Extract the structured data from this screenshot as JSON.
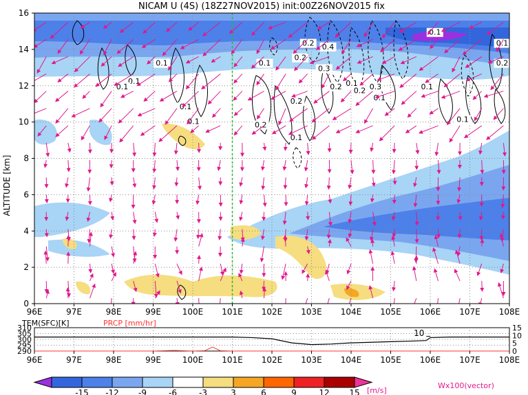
{
  "title": "NICAM U (4S) (18Z27NOV2015) init:00Z26NOV2015 fix",
  "chart_data": [
    {
      "type": "heatmap",
      "title": "NICAM U (4S) (18Z27NOV2015) init:00Z26NOV2015 fix",
      "xlabel": "",
      "ylabel": "ALTITUDE [km]",
      "x_ticks": [
        "96E",
        "97E",
        "98E",
        "99E",
        "100E",
        "101E",
        "102E",
        "103E",
        "104E",
        "105E",
        "106E",
        "107E",
        "108E"
      ],
      "y_ticks": [
        "0",
        "2",
        "4",
        "6",
        "8",
        "10",
        "12",
        "14",
        "16"
      ],
      "xlim": [
        96,
        108
      ],
      "ylim": [
        0,
        16
      ],
      "grid": true,
      "marker_line_lon": 101.0,
      "contour_labels": [
        "0.1",
        "0.1",
        "0.1",
        "0.1",
        "0.1",
        "0.1",
        "0.2",
        "0.1",
        "0.2",
        "0.4",
        "0.2",
        "0.3",
        "0.1",
        "0.2",
        "0.3",
        "0.2",
        "0.1",
        "0.2",
        "0.1",
        "0.1",
        "0.1",
        "0.1",
        "0.2"
      ],
      "vector_label": "Wx100(vector)"
    },
    {
      "type": "line",
      "series": [
        {
          "name": "TEM(SFC)[K]",
          "color": "#000000",
          "x": [
            96,
            97,
            98,
            99,
            100,
            100.5,
            101,
            101.5,
            102,
            102.5,
            103,
            103.5,
            104,
            104.5,
            105,
            105.5,
            105.9,
            106,
            106.5,
            107,
            108
          ],
          "values": [
            302,
            302,
            302,
            302,
            302,
            302,
            302,
            301.5,
            300.5,
            297,
            295.5,
            296,
            297,
            297.5,
            298,
            298.5,
            299,
            301.5,
            302,
            302,
            302
          ]
        },
        {
          "name": "PRCP [mm/hr]",
          "color": "#ff3333",
          "x": [
            96,
            99,
            99.5,
            100,
            100.3,
            100.5,
            100.7,
            101,
            102,
            103,
            104,
            105,
            106,
            107,
            108
          ],
          "values": [
            0,
            0,
            0.4,
            0,
            0.2,
            2.5,
            0.2,
            0,
            0,
            0,
            0,
            0,
            0,
            0,
            0
          ]
        }
      ],
      "left_ticks": [
        "310",
        "305",
        "300",
        "295",
        "290"
      ],
      "right_ticks": [
        "15",
        "10",
        "5",
        "0"
      ],
      "x_ticks": [
        "96E",
        "97E",
        "98E",
        "99E",
        "100E",
        "101E",
        "102E",
        "103E",
        "104E",
        "105E",
        "106E",
        "107E",
        "108E"
      ],
      "annotation": "10"
    }
  ],
  "colorbar": {
    "ticks": [
      "-15",
      "-12",
      "-9",
      "-6",
      "-3",
      "3",
      "6",
      "9",
      "12",
      "15"
    ],
    "unit": "[m/s]",
    "colors": [
      "#9b30e0",
      "#3366dd",
      "#4d80e8",
      "#7aa6f0",
      "#a8d4f5",
      "#ffffff",
      "#f5dd80",
      "#f5a623",
      "#ff6600",
      "#ee2222",
      "#aa0000",
      "#ee3399"
    ]
  }
}
